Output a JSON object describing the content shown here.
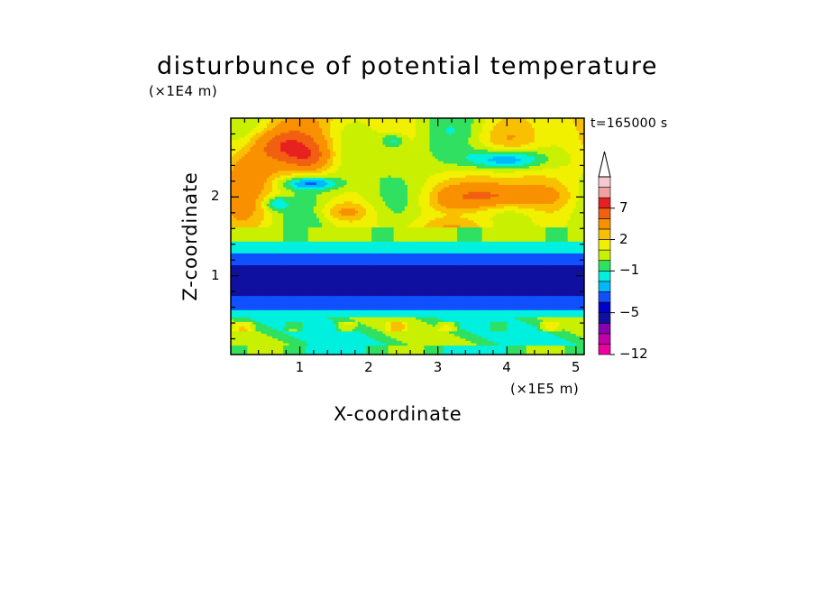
{
  "chart_data": {
    "type": "heatmap",
    "title": "disturbunce of potential temperature",
    "xlabel": "X-coordinate",
    "ylabel": "Z-coordinate",
    "x_unit": "(×1E5 m)",
    "y_unit": "(×1E4 m)",
    "annotation": "t=165000 s",
    "xlim": [
      0,
      5.12
    ],
    "ylim": [
      0,
      3.0
    ],
    "x_ticks": [
      "1",
      "2",
      "3",
      "4",
      "5"
    ],
    "y_ticks": [
      "1",
      "2"
    ],
    "colorbar_ticks": [
      "7",
      "2",
      "−1",
      "−5",
      "−12"
    ],
    "colorbar_levels": [
      -12,
      -10,
      -8,
      -6,
      -5,
      -4,
      -3,
      -2,
      -1,
      0,
      1,
      2,
      3,
      5,
      7,
      9,
      11
    ],
    "colorbar_extend": "max",
    "colors": [
      "#ee00a0",
      "#c000a8",
      "#8800b0",
      "#1010a0",
      "#0000c8",
      "#1050ff",
      "#00b8ff",
      "#00f0e0",
      "#30e060",
      "#c8f000",
      "#f0f000",
      "#f8c000",
      "#f89000",
      "#f06010",
      "#e82020",
      "#f0a0a0",
      "#f8c8d0"
    ],
    "features": [
      {
        "description": "warm positive disturbance patches in upper layer",
        "z_range": [
          1.5,
          3.0
        ],
        "values": [
          1,
          5
        ]
      },
      {
        "description": "negative band",
        "z_range": [
          0.55,
          1.3
        ],
        "value": -5
      },
      {
        "description": "moderately negative layer near surface",
        "z_range": [
          0,
          0.55
        ],
        "value": -1
      }
    ]
  }
}
